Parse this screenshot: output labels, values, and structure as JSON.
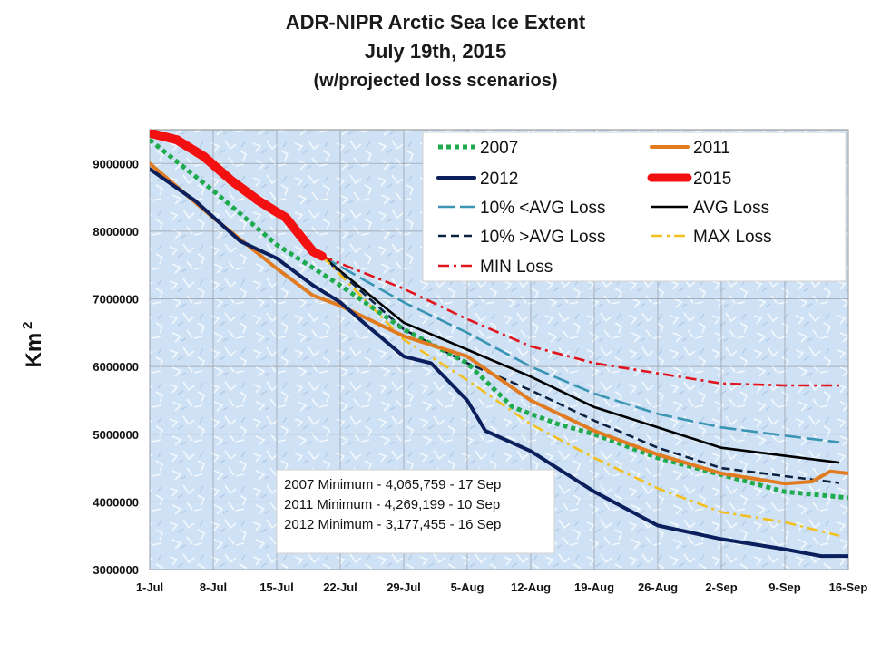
{
  "chart_data": {
    "type": "line",
    "title": "ADR-NIPR Arctic Sea Ice Extent",
    "subtitle": "July 19th, 2015",
    "subtitle2": "(w/projected loss scenarios)",
    "ylabel": "Km",
    "ylabel_sup": "2",
    "ylim": [
      3000000,
      9500000
    ],
    "yticks": [
      3000000,
      4000000,
      5000000,
      6000000,
      7000000,
      8000000,
      9000000
    ],
    "xlim": [
      0,
      77
    ],
    "xticks": [
      {
        "x": 0,
        "label": "1-Jul"
      },
      {
        "x": 7,
        "label": "8-Jul"
      },
      {
        "x": 14,
        "label": "15-Jul"
      },
      {
        "x": 21,
        "label": "22-Jul"
      },
      {
        "x": 28,
        "label": "29-Jul"
      },
      {
        "x": 35,
        "label": "5-Aug"
      },
      {
        "x": 42,
        "label": "12-Aug"
      },
      {
        "x": 49,
        "label": "19-Aug"
      },
      {
        "x": 56,
        "label": "26-Aug"
      },
      {
        "x": 63,
        "label": "2-Sep"
      },
      {
        "x": 70,
        "label": "9-Sep"
      },
      {
        "x": 77,
        "label": "16-Sep"
      }
    ],
    "grid": true,
    "legend_position": "top-right",
    "series": [
      {
        "name": "2007",
        "color": "#1faa4e",
        "style": "dotted",
        "points": [
          [
            0,
            9350000
          ],
          [
            7,
            8600000
          ],
          [
            14,
            7800000
          ],
          [
            21,
            7200000
          ],
          [
            28,
            6550000
          ],
          [
            35,
            6050000
          ],
          [
            40,
            5400000
          ],
          [
            45,
            5150000
          ],
          [
            49,
            5000000
          ],
          [
            56,
            4650000
          ],
          [
            63,
            4400000
          ],
          [
            70,
            4150000
          ],
          [
            77,
            4060000
          ]
        ]
      },
      {
        "name": "2011",
        "color": "#e07b22",
        "style": "solid",
        "points": [
          [
            0,
            9000000
          ],
          [
            7,
            8200000
          ],
          [
            14,
            7450000
          ],
          [
            18,
            7050000
          ],
          [
            21,
            6900000
          ],
          [
            28,
            6450000
          ],
          [
            35,
            6150000
          ],
          [
            42,
            5500000
          ],
          [
            49,
            5050000
          ],
          [
            56,
            4700000
          ],
          [
            63,
            4420000
          ],
          [
            70,
            4270000
          ],
          [
            73,
            4300000
          ],
          [
            75,
            4450000
          ],
          [
            77,
            4420000
          ]
        ]
      },
      {
        "name": "2012",
        "color": "#0b1f5c",
        "style": "solid",
        "points": [
          [
            0,
            8920000
          ],
          [
            5,
            8450000
          ],
          [
            10,
            7850000
          ],
          [
            14,
            7600000
          ],
          [
            18,
            7200000
          ],
          [
            21,
            6950000
          ],
          [
            24,
            6600000
          ],
          [
            28,
            6150000
          ],
          [
            31,
            6050000
          ],
          [
            35,
            5500000
          ],
          [
            37,
            5050000
          ],
          [
            42,
            4750000
          ],
          [
            49,
            4150000
          ],
          [
            56,
            3650000
          ],
          [
            63,
            3450000
          ],
          [
            70,
            3300000
          ],
          [
            74,
            3200000
          ],
          [
            77,
            3200000
          ]
        ]
      },
      {
        "name": "2015",
        "color": "#f31010",
        "style": "thick",
        "points": [
          [
            0,
            9450000
          ],
          [
            3,
            9350000
          ],
          [
            6,
            9100000
          ],
          [
            9,
            8750000
          ],
          [
            12,
            8450000
          ],
          [
            15,
            8200000
          ],
          [
            18,
            7700000
          ],
          [
            19,
            7630000
          ]
        ]
      },
      {
        "name": "10% <AVG Loss",
        "color": "#3a94b4",
        "style": "longdash",
        "points": [
          [
            19,
            7630000
          ],
          [
            28,
            6950000
          ],
          [
            35,
            6500000
          ],
          [
            42,
            6000000
          ],
          [
            49,
            5600000
          ],
          [
            56,
            5300000
          ],
          [
            63,
            5100000
          ],
          [
            70,
            4980000
          ],
          [
            76,
            4880000
          ]
        ]
      },
      {
        "name": "AVG Loss",
        "color": "#000000",
        "style": "solid-thin",
        "points": [
          [
            19,
            7630000
          ],
          [
            28,
            6650000
          ],
          [
            35,
            6250000
          ],
          [
            42,
            5850000
          ],
          [
            49,
            5400000
          ],
          [
            56,
            5100000
          ],
          [
            63,
            4800000
          ],
          [
            70,
            4680000
          ],
          [
            76,
            4580000
          ]
        ]
      },
      {
        "name": "10% >AVG Loss",
        "color": "#0d2240",
        "style": "dashed",
        "points": [
          [
            19,
            7630000
          ],
          [
            28,
            6550000
          ],
          [
            35,
            6050000
          ],
          [
            42,
            5650000
          ],
          [
            49,
            5200000
          ],
          [
            56,
            4800000
          ],
          [
            63,
            4500000
          ],
          [
            70,
            4380000
          ],
          [
            76,
            4280000
          ]
        ]
      },
      {
        "name": "MAX Loss",
        "color": "#f2bf1e",
        "style": "dashdot",
        "points": [
          [
            19,
            7630000
          ],
          [
            28,
            6400000
          ],
          [
            35,
            5800000
          ],
          [
            42,
            5150000
          ],
          [
            49,
            4650000
          ],
          [
            56,
            4200000
          ],
          [
            63,
            3850000
          ],
          [
            70,
            3700000
          ],
          [
            76,
            3500000
          ]
        ]
      },
      {
        "name": "MIN Loss",
        "color": "#e0141b",
        "style": "dashdot",
        "points": [
          [
            19,
            7630000
          ],
          [
            28,
            7150000
          ],
          [
            35,
            6700000
          ],
          [
            42,
            6300000
          ],
          [
            49,
            6050000
          ],
          [
            56,
            5900000
          ],
          [
            63,
            5750000
          ],
          [
            70,
            5720000
          ],
          [
            76,
            5720000
          ]
        ]
      }
    ],
    "annotations": [
      "2007 Minimum - 4,065,759 - 17 Sep",
      "2011 Minimum - 4,269,199 - 10 Sep",
      "2012 Minimum - 3,177,455 - 16 Sep"
    ]
  }
}
